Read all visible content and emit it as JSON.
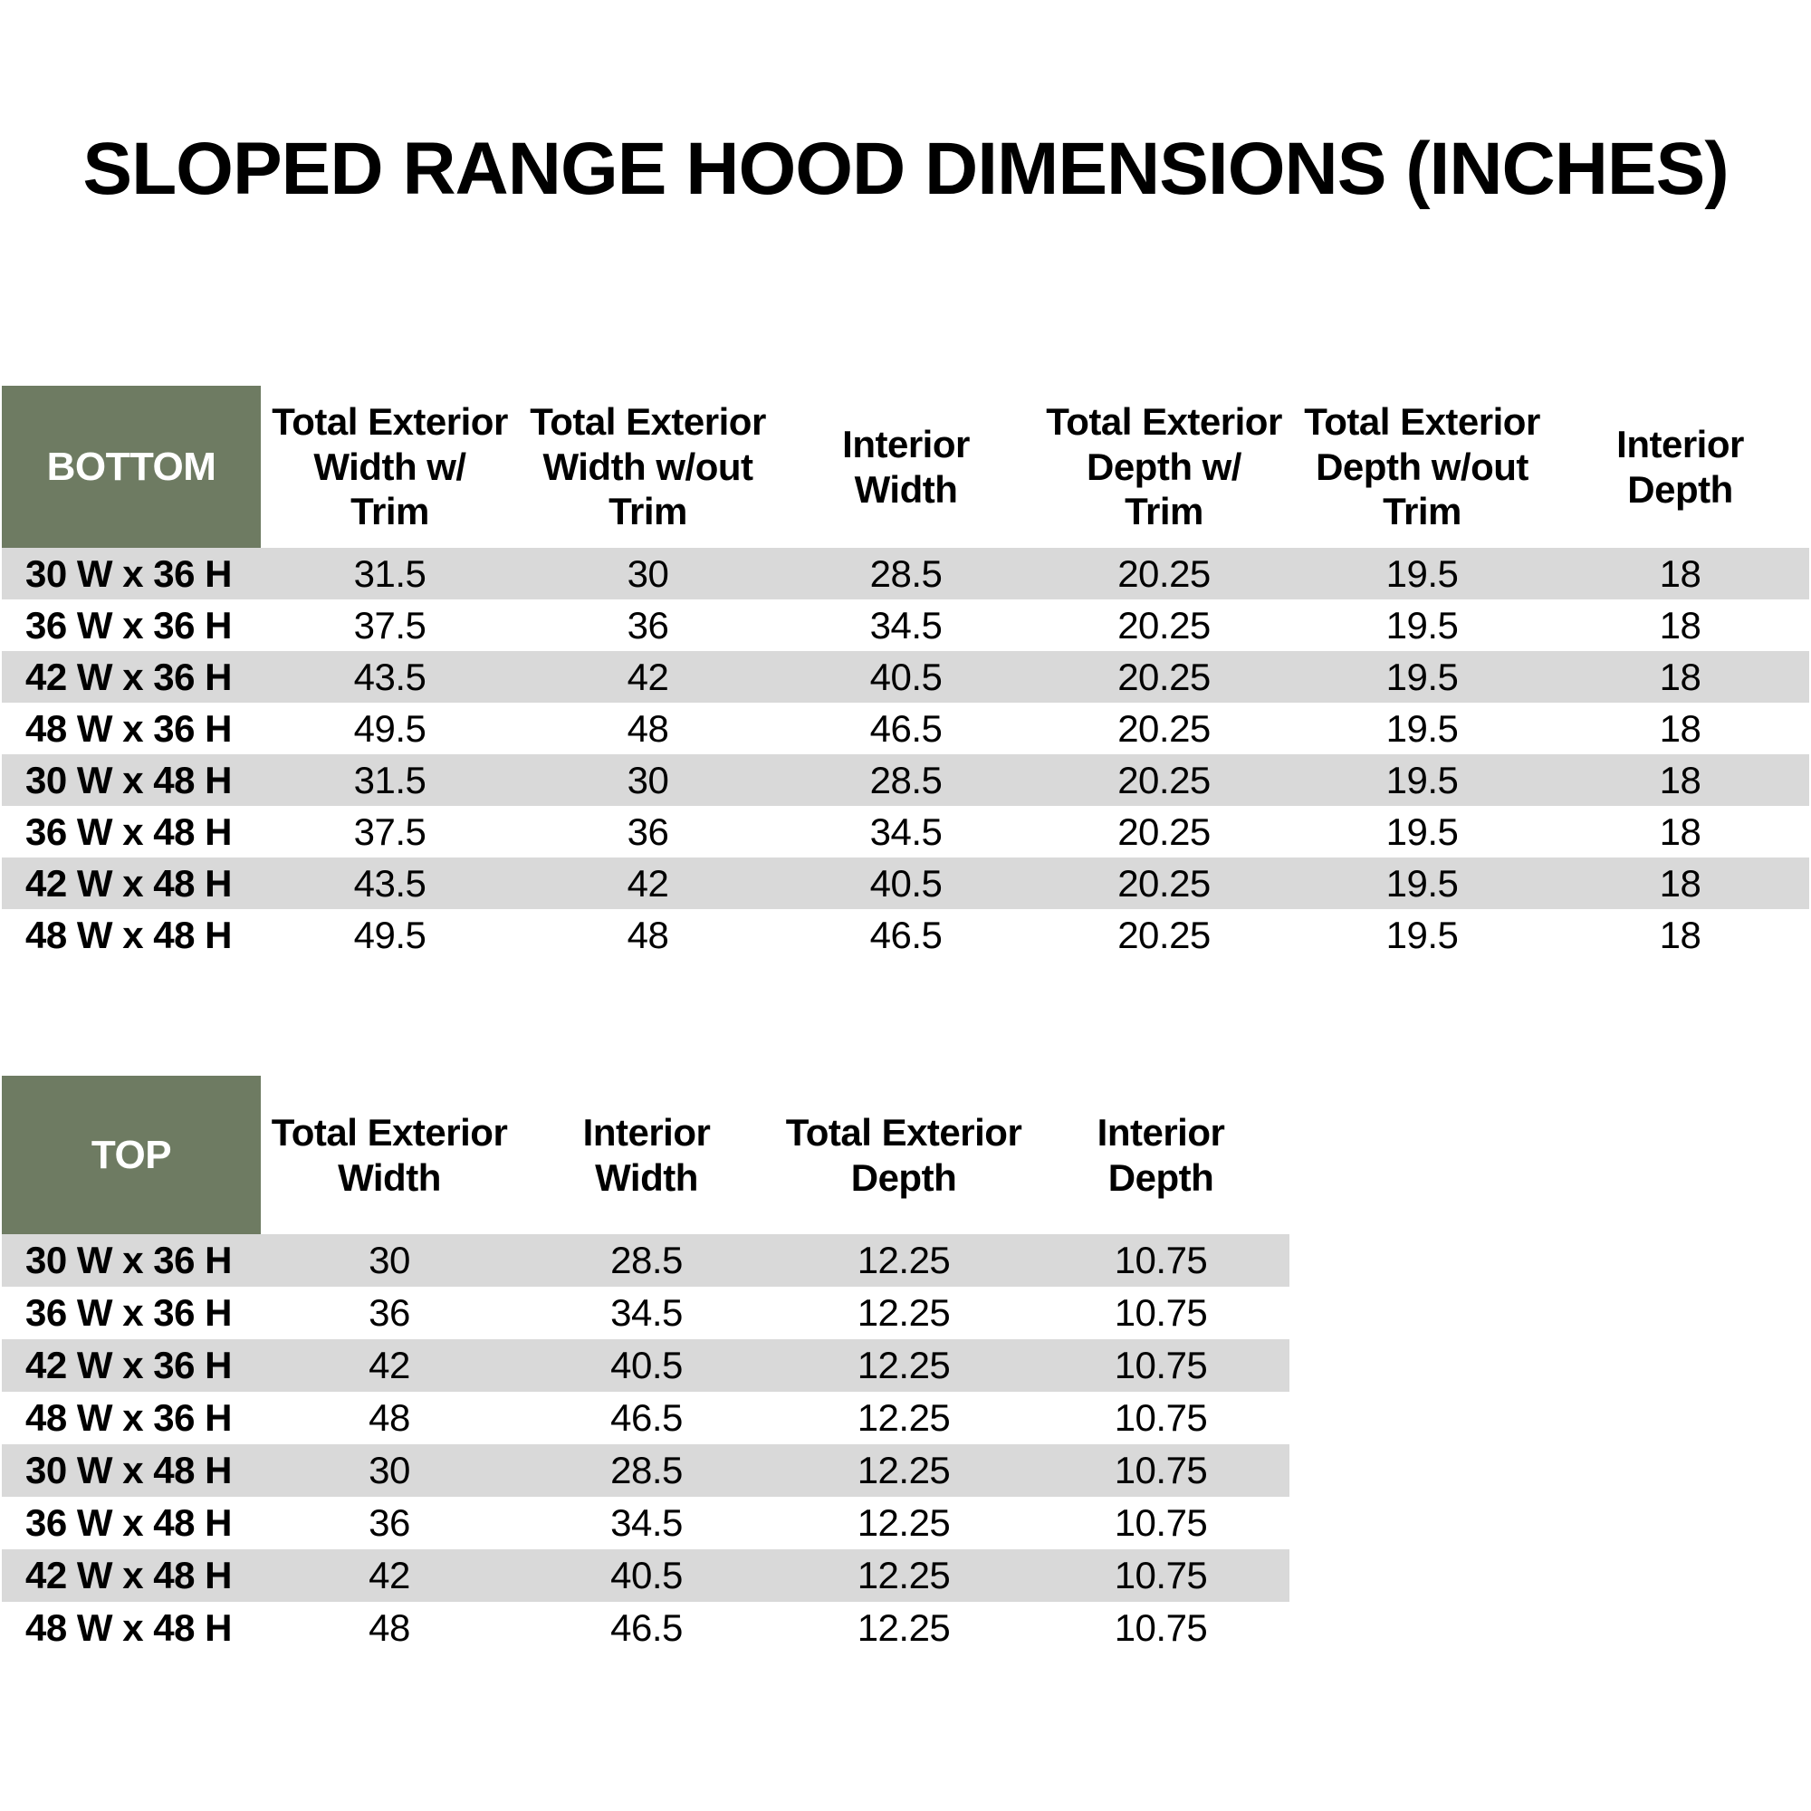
{
  "page": {
    "title": "SLOPED RANGE HOOD DIMENSIONS (INCHES)"
  },
  "colors": {
    "header_green": "#6e7b62",
    "stripe_gray": "#d9d9d9",
    "corner_label_text": "#ffffff",
    "body_text": "#000000"
  },
  "bottom_table": {
    "label": "BOTTOM",
    "columns": [
      "Total Exterior\nWidth w/\nTrim",
      "Total Exterior\nWidth w/out\nTrim",
      "Interior\nWidth",
      "Total Exterior\nDepth w/\nTrim",
      "Total Exterior\nDepth w/out\nTrim",
      "Interior\nDepth"
    ],
    "rows": [
      {
        "label": "30 W x 36 H",
        "values": [
          "31.5",
          "30",
          "28.5",
          "20.25",
          "19.5",
          "18"
        ]
      },
      {
        "label": "36 W x 36 H",
        "values": [
          "37.5",
          "36",
          "34.5",
          "20.25",
          "19.5",
          "18"
        ]
      },
      {
        "label": "42 W x 36 H",
        "values": [
          "43.5",
          "42",
          "40.5",
          "20.25",
          "19.5",
          "18"
        ]
      },
      {
        "label": "48 W x 36 H",
        "values": [
          "49.5",
          "48",
          "46.5",
          "20.25",
          "19.5",
          "18"
        ]
      },
      {
        "label": "30 W x 48 H",
        "values": [
          "31.5",
          "30",
          "28.5",
          "20.25",
          "19.5",
          "18"
        ]
      },
      {
        "label": "36 W x 48 H",
        "values": [
          "37.5",
          "36",
          "34.5",
          "20.25",
          "19.5",
          "18"
        ]
      },
      {
        "label": "42 W x 48 H",
        "values": [
          "43.5",
          "42",
          "40.5",
          "20.25",
          "19.5",
          "18"
        ]
      },
      {
        "label": "48 W x 48 H",
        "values": [
          "49.5",
          "48",
          "46.5",
          "20.25",
          "19.5",
          "18"
        ]
      }
    ]
  },
  "top_table": {
    "label": "TOP",
    "columns": [
      "Total Exterior\nWidth",
      "Interior\nWidth",
      "Total Exterior\nDepth",
      "Interior\nDepth"
    ],
    "rows": [
      {
        "label": "30 W x 36 H",
        "values": [
          "30",
          "28.5",
          "12.25",
          "10.75"
        ]
      },
      {
        "label": "36 W x 36 H",
        "values": [
          "36",
          "34.5",
          "12.25",
          "10.75"
        ]
      },
      {
        "label": "42 W x 36 H",
        "values": [
          "42",
          "40.5",
          "12.25",
          "10.75"
        ]
      },
      {
        "label": "48 W x 36 H",
        "values": [
          "48",
          "46.5",
          "12.25",
          "10.75"
        ]
      },
      {
        "label": "30 W x 48 H",
        "values": [
          "30",
          "28.5",
          "12.25",
          "10.75"
        ]
      },
      {
        "label": "36 W x 48 H",
        "values": [
          "36",
          "34.5",
          "12.25",
          "10.75"
        ]
      },
      {
        "label": "42 W x 48 H",
        "values": [
          "42",
          "40.5",
          "12.25",
          "10.75"
        ]
      },
      {
        "label": "48 W x 48 H",
        "values": [
          "48",
          "46.5",
          "12.25",
          "10.75"
        ]
      }
    ]
  }
}
